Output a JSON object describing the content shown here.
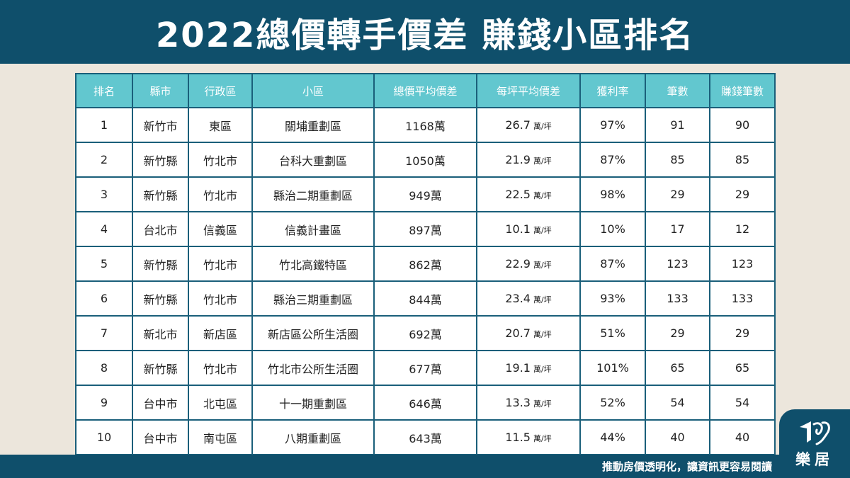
{
  "header": {
    "title": "2022總價轉手價差  賺錢小區排名"
  },
  "table": {
    "columns": [
      "排名",
      "縣市",
      "行政區",
      "小區",
      "總價平均價差",
      "每坪平均價差",
      "獲利率",
      "筆數",
      "賺錢筆數"
    ],
    "unit_label": "萬/坪",
    "rows": [
      {
        "rank": "1",
        "city": "新竹市",
        "district": "東區",
        "zone": "關埔重劃區",
        "total_diff": "1168萬",
        "per_ping": "26.7",
        "profit_rate": "97%",
        "count": "91",
        "profit_count": "90"
      },
      {
        "rank": "2",
        "city": "新竹縣",
        "district": "竹北市",
        "zone": "台科大重劃區",
        "total_diff": "1050萬",
        "per_ping": "21.9",
        "profit_rate": "87%",
        "count": "85",
        "profit_count": "85"
      },
      {
        "rank": "3",
        "city": "新竹縣",
        "district": "竹北市",
        "zone": "縣治二期重劃區",
        "total_diff": "949萬",
        "per_ping": "22.5",
        "profit_rate": "98%",
        "count": "29",
        "profit_count": "29"
      },
      {
        "rank": "4",
        "city": "台北市",
        "district": "信義區",
        "zone": "信義計畫區",
        "total_diff": "897萬",
        "per_ping": "10.1",
        "profit_rate": "10%",
        "count": "17",
        "profit_count": "12"
      },
      {
        "rank": "5",
        "city": "新竹縣",
        "district": "竹北市",
        "zone": "竹北高鐵特區",
        "total_diff": "862萬",
        "per_ping": "22.9",
        "profit_rate": "87%",
        "count": "123",
        "profit_count": "123"
      },
      {
        "rank": "6",
        "city": "新竹縣",
        "district": "竹北市",
        "zone": "縣治三期重劃區",
        "total_diff": "844萬",
        "per_ping": "23.4",
        "profit_rate": "93%",
        "count": "133",
        "profit_count": "133"
      },
      {
        "rank": "7",
        "city": "新北市",
        "district": "新店區",
        "zone": "新店區公所生活圈",
        "total_diff": "692萬",
        "per_ping": "20.7",
        "profit_rate": "51%",
        "count": "29",
        "profit_count": "29"
      },
      {
        "rank": "8",
        "city": "新竹縣",
        "district": "竹北市",
        "zone": "竹北市公所生活圈",
        "total_diff": "677萬",
        "per_ping": "19.1",
        "profit_rate": "101%",
        "count": "65",
        "profit_count": "65"
      },
      {
        "rank": "9",
        "city": "台中市",
        "district": "北屯區",
        "zone": "十一期重劃區",
        "total_diff": "646萬",
        "per_ping": "13.3",
        "profit_rate": "52%",
        "count": "54",
        "profit_count": "54"
      },
      {
        "rank": "10",
        "city": "台中市",
        "district": "南屯區",
        "zone": "八期重劃區",
        "total_diff": "643萬",
        "per_ping": "11.5",
        "profit_rate": "44%",
        "count": "40",
        "profit_count": "40"
      }
    ]
  },
  "footer": {
    "slogan": "推動房價透明化，讓資訊更容易閱讀"
  },
  "logo": {
    "text": "樂居",
    "icon": "leju-logo-icon"
  },
  "colors": {
    "header_bg": "#0f4f6b",
    "table_header_bg": "#62c7cf",
    "page_bg": "#ece6dc",
    "border": "#1a5f7a"
  }
}
